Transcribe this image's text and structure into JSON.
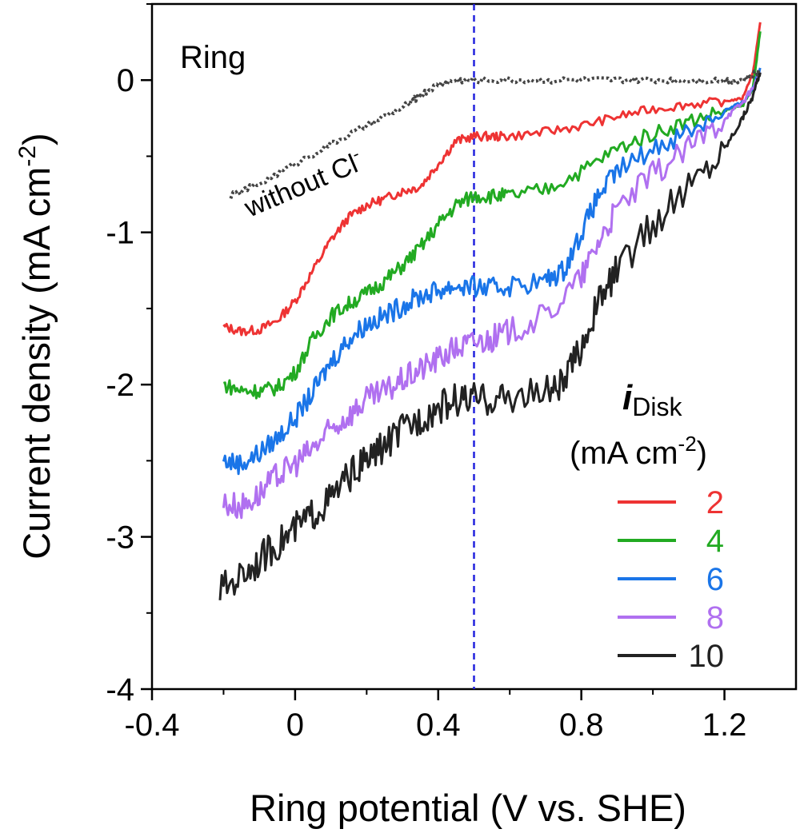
{
  "chart_data": {
    "type": "line",
    "panel_label": "Ring",
    "xlabel": "Ring potential (V vs. SHE)",
    "ylabel": "Current density (mA cm",
    "ylabel_sup": "-2",
    "ylabel_end": ")",
    "xlim": [
      -0.4,
      1.4
    ],
    "ylim": [
      -4,
      0.5
    ],
    "xticks": [
      -0.4,
      0,
      0.4,
      0.8,
      1.2
    ],
    "xtick_labels": [
      "-0.4",
      "0",
      "0.4",
      "0.8",
      "1.2"
    ],
    "yticks": [
      -4,
      -3,
      -2,
      -1,
      0
    ],
    "ytick_labels": [
      "-4",
      "-3",
      "-2",
      "-1",
      "0"
    ],
    "reference_line": {
      "x": 0.5,
      "color": "#2222dd"
    },
    "legend": {
      "title_main": "i",
      "title_sub": "Disk",
      "units_main": "(mA cm",
      "units_sup": "-2",
      "units_end": ")",
      "position": "lower-right"
    },
    "annotation": {
      "main": "without Cl",
      "sup": "-"
    },
    "series": [
      {
        "name": "2",
        "color": "#ee3333",
        "x": [
          -0.2,
          -0.15,
          -0.1,
          -0.05,
          0.0,
          0.05,
          0.1,
          0.15,
          0.2,
          0.25,
          0.3,
          0.35,
          0.4,
          0.45,
          0.5,
          0.55,
          0.6,
          0.7,
          0.8,
          0.9,
          1.0,
          1.1,
          1.2,
          1.25,
          1.28,
          1.3
        ],
        "y": [
          -1.62,
          -1.65,
          -1.64,
          -1.58,
          -1.45,
          -1.25,
          -1.05,
          -0.9,
          -0.82,
          -0.78,
          -0.73,
          -0.7,
          -0.55,
          -0.4,
          -0.37,
          -0.37,
          -0.37,
          -0.34,
          -0.3,
          -0.24,
          -0.19,
          -0.16,
          -0.14,
          -0.12,
          0.05,
          0.38
        ]
      },
      {
        "name": "4",
        "color": "#22aa22",
        "x": [
          -0.2,
          -0.15,
          -0.1,
          -0.05,
          0.0,
          0.05,
          0.1,
          0.15,
          0.2,
          0.25,
          0.3,
          0.35,
          0.4,
          0.45,
          0.5,
          0.55,
          0.6,
          0.7,
          0.8,
          0.9,
          1.0,
          1.1,
          1.2,
          1.25,
          1.28,
          1.3
        ],
        "y": [
          -2.0,
          -2.04,
          -2.04,
          -2.02,
          -1.92,
          -1.7,
          -1.55,
          -1.47,
          -1.4,
          -1.32,
          -1.22,
          -1.1,
          -0.95,
          -0.82,
          -0.76,
          -0.76,
          -0.76,
          -0.72,
          -0.6,
          -0.45,
          -0.35,
          -0.27,
          -0.2,
          -0.17,
          -0.05,
          0.32
        ]
      },
      {
        "name": "6",
        "color": "#1a75e8",
        "x": [
          -0.2,
          -0.15,
          -0.1,
          -0.05,
          0.0,
          0.05,
          0.1,
          0.15,
          0.2,
          0.25,
          0.3,
          0.35,
          0.4,
          0.45,
          0.5,
          0.55,
          0.6,
          0.7,
          0.75,
          0.8,
          0.85,
          0.9,
          1.0,
          1.1,
          1.2,
          1.25,
          1.28,
          1.3
        ],
        "y": [
          -2.5,
          -2.52,
          -2.45,
          -2.35,
          -2.22,
          -2.05,
          -1.85,
          -1.7,
          -1.6,
          -1.55,
          -1.48,
          -1.42,
          -1.38,
          -1.35,
          -1.36,
          -1.37,
          -1.35,
          -1.32,
          -1.25,
          -1.0,
          -0.75,
          -0.6,
          -0.45,
          -0.33,
          -0.2,
          -0.15,
          -0.05,
          0.08
        ]
      },
      {
        "name": "8",
        "color": "#b070f0",
        "x": [
          -0.2,
          -0.15,
          -0.1,
          -0.05,
          0.0,
          0.05,
          0.1,
          0.15,
          0.2,
          0.25,
          0.3,
          0.35,
          0.4,
          0.45,
          0.5,
          0.55,
          0.6,
          0.7,
          0.8,
          0.85,
          0.9,
          1.0,
          1.1,
          1.2,
          1.25,
          1.28,
          1.3
        ],
        "y": [
          -2.78,
          -2.8,
          -2.72,
          -2.6,
          -2.52,
          -2.42,
          -2.3,
          -2.2,
          -2.1,
          -2.05,
          -1.97,
          -1.9,
          -1.83,
          -1.76,
          -1.72,
          -1.7,
          -1.65,
          -1.55,
          -1.3,
          -1.05,
          -0.85,
          -0.62,
          -0.45,
          -0.25,
          -0.15,
          -0.05,
          0.05
        ]
      },
      {
        "name": "10",
        "color": "#222222",
        "x": [
          -0.21,
          -0.15,
          -0.1,
          -0.05,
          0.0,
          0.05,
          0.1,
          0.15,
          0.2,
          0.25,
          0.3,
          0.35,
          0.4,
          0.45,
          0.5,
          0.55,
          0.6,
          0.7,
          0.75,
          0.8,
          0.85,
          0.9,
          1.0,
          1.1,
          1.2,
          1.25,
          1.28,
          1.3
        ],
        "y": [
          -3.35,
          -3.25,
          -3.15,
          -3.05,
          -2.95,
          -2.85,
          -2.75,
          -2.6,
          -2.5,
          -2.4,
          -2.3,
          -2.22,
          -2.15,
          -2.1,
          -2.1,
          -2.1,
          -2.08,
          -2.05,
          -2.0,
          -1.75,
          -1.45,
          -1.25,
          -0.95,
          -0.7,
          -0.45,
          -0.25,
          -0.1,
          0.05
        ]
      },
      {
        "name": "without Cl-",
        "color": "#444444",
        "dotted": true,
        "x": [
          -0.18,
          -0.1,
          0.0,
          0.1,
          0.2,
          0.3,
          0.35,
          0.4,
          0.45,
          0.5,
          0.6,
          0.7,
          0.8,
          0.9,
          1.0,
          1.1,
          1.2,
          1.25,
          1.3
        ],
        "y": [
          -0.76,
          -0.68,
          -0.55,
          -0.42,
          -0.3,
          -0.18,
          -0.1,
          -0.03,
          0.0,
          0.0,
          0.0,
          0.0,
          0.0,
          0.0,
          0.0,
          0.0,
          0.0,
          0.0,
          0.06
        ]
      }
    ]
  }
}
